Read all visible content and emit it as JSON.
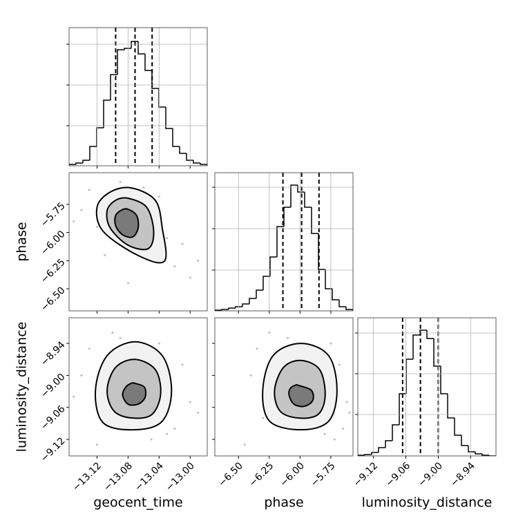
{
  "chart_data": [
    {
      "type": "histogram",
      "color": "#000000",
      "grid": true,
      "xtick_labels": false,
      "ytick_labels": false,
      "xlim": [
        -13.156,
        -12.978
      ],
      "ylim": [
        0,
        200
      ],
      "xticks": [
        -13.12,
        -13.08,
        -13.04,
        -13.0
      ],
      "yticks": [
        58,
        117,
        176
      ],
      "bins": [
        -13.156,
        -13.1471,
        -13.1382,
        -13.1293,
        -13.1204,
        -13.1115,
        -13.1026,
        -13.0937,
        -13.0848,
        -13.0759,
        -13.067,
        -13.0581,
        -13.0492,
        -13.0403,
        -13.0314,
        -13.0225,
        -13.0136,
        -13.0047,
        -12.9958,
        -12.9869,
        -12.978
      ],
      "values": [
        2,
        4,
        8,
        28,
        55,
        95,
        132,
        168,
        170,
        180,
        162,
        138,
        112,
        85,
        54,
        28,
        18,
        8,
        4,
        2
      ],
      "quantiles": [
        -13.096,
        -13.071,
        -13.049
      ]
    },
    {
      "type": "scatter",
      "grid": false,
      "xtick_labels": false,
      "ytick_labels": true,
      "ylabel": "phase",
      "xlim": [
        -13.156,
        -12.978
      ],
      "ylim": [
        -6.696,
        -5.468
      ],
      "xticks": [
        -13.12,
        -13.08,
        -13.04,
        -13.0
      ],
      "yticks": [
        {
          "value": -5.75,
          "label": "−5.75"
        },
        {
          "value": -6.0,
          "label": "−6.00"
        },
        {
          "value": -6.25,
          "label": "−6.25"
        },
        {
          "value": -6.5,
          "label": "−6.50"
        }
      ],
      "point_color": "#999999",
      "line_color": "#000000",
      "contour_fills": [
        "#f2f2f2",
        "#c4c4c4",
        "#7a7a7a"
      ],
      "points": {
        "x": [
          -13.13,
          -13.02,
          -13.1,
          -13.05,
          -13.14,
          -13.0,
          -13.09,
          -13.03,
          -13.11,
          -13.06,
          -13.12,
          -13.01,
          -13.08,
          -13.04,
          -13.15,
          -12.99
        ],
        "y": [
          -5.62,
          -6.3,
          -5.7,
          -6.15,
          -5.8,
          -6.4,
          -5.55,
          -6.05,
          -6.2,
          -5.6,
          -5.95,
          -6.1,
          -6.45,
          -5.68,
          -5.9,
          -6.25
        ]
      },
      "contours": [
        {
          "x": [
            -13.076,
            -13.045,
            -13.036,
            -13.033,
            -13.067,
            -13.112,
            -13.12,
            -13.103
          ],
          "y": [
            -5.603,
            -5.713,
            -5.959,
            -6.253,
            -6.204,
            -5.99,
            -5.775,
            -5.64
          ]
        },
        {
          "x": [
            -13.08,
            -13.056,
            -13.047,
            -13.054,
            -13.08,
            -13.103,
            -13.107,
            -13.096
          ],
          "y": [
            -5.695,
            -5.775,
            -5.99,
            -6.143,
            -6.112,
            -5.959,
            -5.805,
            -5.713
          ]
        },
        {
          "x": [
            -13.08,
            -13.069,
            -13.067,
            -13.074,
            -13.087,
            -13.096,
            -13.096,
            -13.088
          ],
          "y": [
            -5.793,
            -5.848,
            -5.959,
            -6.039,
            -6.02,
            -5.94,
            -5.848,
            -5.799
          ]
        }
      ]
    },
    {
      "type": "histogram",
      "color": "#000000",
      "grid": true,
      "xtick_labels": false,
      "ytick_labels": false,
      "xlim": [
        -6.692,
        -5.57
      ],
      "ylim": [
        0,
        200
      ],
      "xticks": [
        -6.5,
        -6.25,
        -6.0,
        -5.75
      ],
      "yticks": [
        59,
        119,
        179
      ],
      "bins": [
        -6.692,
        -6.6359,
        -6.5798,
        -6.5237,
        -6.4676,
        -6.4115,
        -6.3554,
        -6.2993,
        -6.2432,
        -6.1871,
        -6.131,
        -6.0749,
        -6.0188,
        -5.9627,
        -5.9066,
        -5.8505,
        -5.7944,
        -5.7383,
        -5.6822,
        -5.6261,
        -5.57
      ],
      "values": [
        1,
        2,
        4,
        6,
        10,
        18,
        30,
        50,
        78,
        122,
        150,
        182,
        172,
        150,
        112,
        60,
        32,
        16,
        6,
        2
      ],
      "quantiles": [
        -6.139,
        -5.987,
        -5.846
      ]
    },
    {
      "type": "scatter",
      "grid": false,
      "xtick_labels": true,
      "ytick_labels": true,
      "xlabel": "geocent_time",
      "ylabel": "luminosity_distance",
      "xlim": [
        -13.156,
        -12.978
      ],
      "ylim": [
        -9.151,
        -8.892
      ],
      "xticks": [
        {
          "value": -13.12,
          "label": "−13.12"
        },
        {
          "value": -13.08,
          "label": "−13.08"
        },
        {
          "value": -13.04,
          "label": "−13.04"
        },
        {
          "value": -13.0,
          "label": "−13.00"
        }
      ],
      "yticks": [
        {
          "value": -8.94,
          "label": "−8.94"
        },
        {
          "value": -9.0,
          "label": "−9.00"
        },
        {
          "value": -9.06,
          "label": "−9.06"
        },
        {
          "value": -9.12,
          "label": "−9.12"
        }
      ],
      "point_color": "#999999",
      "line_color": "#000000",
      "contour_fills": [
        "#f2f2f2",
        "#c4c4c4",
        "#7a7a7a"
      ],
      "points": {
        "x": [
          -13.13,
          -13.02,
          -13.1,
          -13.05,
          -13.14,
          -13.0,
          -13.09,
          -13.03,
          -13.11,
          -13.06,
          -13.12,
          -13.01,
          -13.08,
          -13.04,
          -13.15,
          -12.99
        ],
        "y": [
          -8.95,
          -9.1,
          -8.92,
          -9.12,
          -9.0,
          -9.05,
          -8.93,
          -9.11,
          -9.08,
          -8.96,
          -9.13,
          -8.98,
          -9.09,
          -8.94,
          -9.04,
          -9.07
        ]
      },
      "contours": [
        {
          "x": [
            -13.071,
            -13.036,
            -13.024,
            -13.036,
            -13.071,
            -13.112,
            -13.122,
            -13.107
          ],
          "y": [
            -8.937,
            -8.963,
            -9.028,
            -9.086,
            -9.102,
            -9.089,
            -9.028,
            -8.963
          ]
        },
        {
          "x": [
            -13.071,
            -13.045,
            -13.038,
            -13.049,
            -13.074,
            -13.098,
            -13.107,
            -13.096
          ],
          "y": [
            -8.97,
            -8.989,
            -9.034,
            -9.073,
            -9.08,
            -9.067,
            -9.028,
            -8.985
          ]
        },
        {
          "x": [
            -13.071,
            -13.059,
            -13.058,
            -13.067,
            -13.08,
            -13.087,
            -13.083,
            -13.076
          ],
          "y": [
            -9.015,
            -9.022,
            -9.041,
            -9.054,
            -9.054,
            -9.037,
            -9.022,
            -9.015
          ]
        }
      ]
    },
    {
      "type": "scatter",
      "grid": false,
      "xtick_labels": true,
      "ytick_labels": false,
      "xlabel": "phase",
      "xlim": [
        -6.692,
        -5.57
      ],
      "ylim": [
        -9.151,
        -8.892
      ],
      "xticks": [
        {
          "value": -6.5,
          "label": "−6.50"
        },
        {
          "value": -6.25,
          "label": "−6.25"
        },
        {
          "value": -6.0,
          "label": "−6.00"
        },
        {
          "value": -5.75,
          "label": "−5.75"
        }
      ],
      "yticks": [
        -8.94,
        -9.0,
        -9.06,
        -9.12
      ],
      "point_color": "#999999",
      "line_color": "#000000",
      "contour_fills": [
        "#f2f2f2",
        "#c4c4c4",
        "#7a7a7a"
      ],
      "points": {
        "x": [
          -6.35,
          -5.65,
          -6.25,
          -5.72,
          -6.4,
          -5.62,
          -6.1,
          -5.8,
          -6.3,
          -5.9,
          -6.45,
          -5.68,
          -6.05,
          -5.75,
          -6.2,
          -5.6
        ],
        "y": [
          -8.95,
          -9.1,
          -8.92,
          -9.12,
          -9.0,
          -9.05,
          -8.93,
          -9.11,
          -9.08,
          -8.96,
          -9.13,
          -8.98,
          -9.09,
          -8.94,
          -9.04,
          -9.07
        ]
      },
      "contours": [
        {
          "x": [
            -5.993,
            -5.768,
            -5.7,
            -5.768,
            -5.993,
            -6.247,
            -6.303,
            -6.219
          ],
          "y": [
            -8.94,
            -8.963,
            -9.028,
            -9.086,
            -9.102,
            -9.086,
            -9.028,
            -8.963
          ]
        },
        {
          "x": [
            -5.993,
            -5.841,
            -5.796,
            -5.852,
            -6.01,
            -6.162,
            -6.207,
            -6.134
          ],
          "y": [
            -8.972,
            -8.989,
            -9.037,
            -9.073,
            -9.08,
            -9.067,
            -9.028,
            -8.985
          ]
        },
        {
          "x": [
            -6.01,
            -5.908,
            -5.897,
            -5.965,
            -6.049,
            -6.089,
            -6.078,
            -6.032
          ],
          "y": [
            -9.019,
            -9.028,
            -9.047,
            -9.058,
            -9.054,
            -9.037,
            -9.024,
            -9.018
          ]
        }
      ]
    },
    {
      "type": "histogram",
      "color": "#000000",
      "grid": true,
      "xtick_labels": true,
      "ytick_labels": false,
      "xlabel": "luminosity_distance",
      "xlim": [
        -9.149,
        -8.893
      ],
      "ylim": [
        0,
        200
      ],
      "xticks": [
        {
          "value": -9.12,
          "label": "−9.12"
        },
        {
          "value": -9.06,
          "label": "−9.06"
        },
        {
          "value": -9.0,
          "label": "−9.00"
        },
        {
          "value": -8.94,
          "label": "−8.94"
        }
      ],
      "yticks": [
        60,
        119,
        178
      ],
      "bins": [
        -9.149,
        -9.1362,
        -9.1234,
        -9.1106,
        -9.0978,
        -9.085,
        -9.0722,
        -9.0594,
        -9.0466,
        -9.0338,
        -9.021,
        -9.0082,
        -8.9954,
        -8.9826,
        -8.9698,
        -8.957,
        -8.9442,
        -8.9314,
        -8.9186,
        -8.9058,
        -8.893
      ],
      "values": [
        1,
        2,
        5,
        12,
        22,
        45,
        90,
        140,
        175,
        182,
        170,
        130,
        90,
        55,
        30,
        15,
        6,
        3,
        1,
        0
      ],
      "quantiles": [
        -9.066,
        -9.033,
        -9.0
      ]
    }
  ]
}
